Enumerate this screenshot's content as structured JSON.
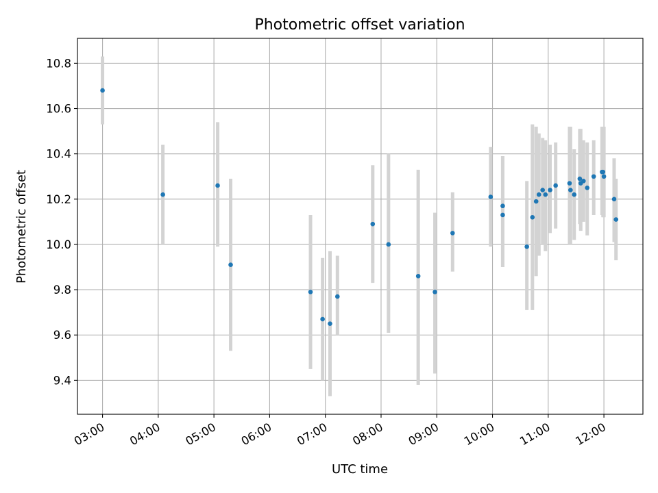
{
  "chart_data": {
    "type": "scatter",
    "title": "Photometric offset variation",
    "xlabel": "UTC time",
    "ylabel": "Photometric offset",
    "xlim": [
      "02:33",
      "12:42"
    ],
    "ylim": [
      9.25,
      10.91
    ],
    "x_ticks": [
      "03:00",
      "04:00",
      "05:00",
      "06:00",
      "07:00",
      "08:00",
      "09:00",
      "10:00",
      "11:00",
      "12:00"
    ],
    "y_ticks": [
      "9.4",
      "9.6",
      "9.8",
      "10.0",
      "10.2",
      "10.4",
      "10.6",
      "10.8"
    ],
    "grid": true,
    "marker_color": "#1f77b4",
    "errorbar_color": "#d3d3d3",
    "points": [
      {
        "t": "03:00",
        "y": 10.68,
        "lo": 10.53,
        "hi": 10.83
      },
      {
        "t": "04:05",
        "y": 10.22,
        "lo": 10.0,
        "hi": 10.44
      },
      {
        "t": "05:04",
        "y": 10.26,
        "lo": 9.99,
        "hi": 10.54
      },
      {
        "t": "05:18",
        "y": 9.91,
        "lo": 9.53,
        "hi": 10.29
      },
      {
        "t": "06:44",
        "y": 9.79,
        "lo": 9.45,
        "hi": 10.13
      },
      {
        "t": "06:57",
        "y": 9.67,
        "lo": 9.4,
        "hi": 9.94
      },
      {
        "t": "07:05",
        "y": 9.65,
        "lo": 9.33,
        "hi": 9.97
      },
      {
        "t": "07:13",
        "y": 9.77,
        "lo": 9.6,
        "hi": 9.95
      },
      {
        "t": "07:51",
        "y": 10.09,
        "lo": 9.83,
        "hi": 10.35
      },
      {
        "t": "08:08",
        "y": 10.0,
        "lo": 9.61,
        "hi": 10.4
      },
      {
        "t": "08:40",
        "y": 9.86,
        "lo": 9.38,
        "hi": 10.33
      },
      {
        "t": "08:58",
        "y": 9.79,
        "lo": 9.43,
        "hi": 10.14
      },
      {
        "t": "09:17",
        "y": 10.05,
        "lo": 9.88,
        "hi": 10.23
      },
      {
        "t": "09:58",
        "y": 10.21,
        "lo": 9.99,
        "hi": 10.43
      },
      {
        "t": "10:11",
        "y": 10.17,
        "lo": 9.9,
        "hi": 10.39
      },
      {
        "t": "10:11",
        "y": 10.13,
        "lo": 9.9,
        "hi": 10.39
      },
      {
        "t": "10:37",
        "y": 9.99,
        "lo": 9.71,
        "hi": 10.28
      },
      {
        "t": "10:43",
        "y": 10.12,
        "lo": 9.71,
        "hi": 10.53
      },
      {
        "t": "10:47",
        "y": 10.19,
        "lo": 9.86,
        "hi": 10.52
      },
      {
        "t": "10:50",
        "y": 10.22,
        "lo": 9.95,
        "hi": 10.49
      },
      {
        "t": "10:54",
        "y": 10.24,
        "lo": 10.0,
        "hi": 10.47
      },
      {
        "t": "10:57",
        "y": 10.22,
        "lo": 9.97,
        "hi": 10.46
      },
      {
        "t": "11:02",
        "y": 10.24,
        "lo": 10.05,
        "hi": 10.44
      },
      {
        "t": "11:08",
        "y": 10.26,
        "lo": 10.07,
        "hi": 10.45
      },
      {
        "t": "11:23",
        "y": 10.27,
        "lo": 10.0,
        "hi": 10.52
      },
      {
        "t": "11:24",
        "y": 10.24,
        "lo": 10.0,
        "hi": 10.52
      },
      {
        "t": "11:28",
        "y": 10.22,
        "lo": 10.02,
        "hi": 10.42
      },
      {
        "t": "11:34",
        "y": 10.29,
        "lo": 10.09,
        "hi": 10.51
      },
      {
        "t": "11:35",
        "y": 10.27,
        "lo": 10.06,
        "hi": 10.51
      },
      {
        "t": "11:38",
        "y": 10.28,
        "lo": 10.1,
        "hi": 10.46
      },
      {
        "t": "11:42",
        "y": 10.25,
        "lo": 10.04,
        "hi": 10.45
      },
      {
        "t": "11:49",
        "y": 10.3,
        "lo": 10.13,
        "hi": 10.46
      },
      {
        "t": "11:58",
        "y": 10.32,
        "lo": 10.13,
        "hi": 10.52
      },
      {
        "t": "11:59",
        "y": 10.32,
        "lo": 10.12,
        "hi": 10.52
      },
      {
        "t": "12:00",
        "y": 10.3,
        "lo": 10.12,
        "hi": 10.52
      },
      {
        "t": "12:11",
        "y": 10.2,
        "lo": 10.01,
        "hi": 10.38
      },
      {
        "t": "12:13",
        "y": 10.11,
        "lo": 9.93,
        "hi": 10.29
      }
    ]
  }
}
